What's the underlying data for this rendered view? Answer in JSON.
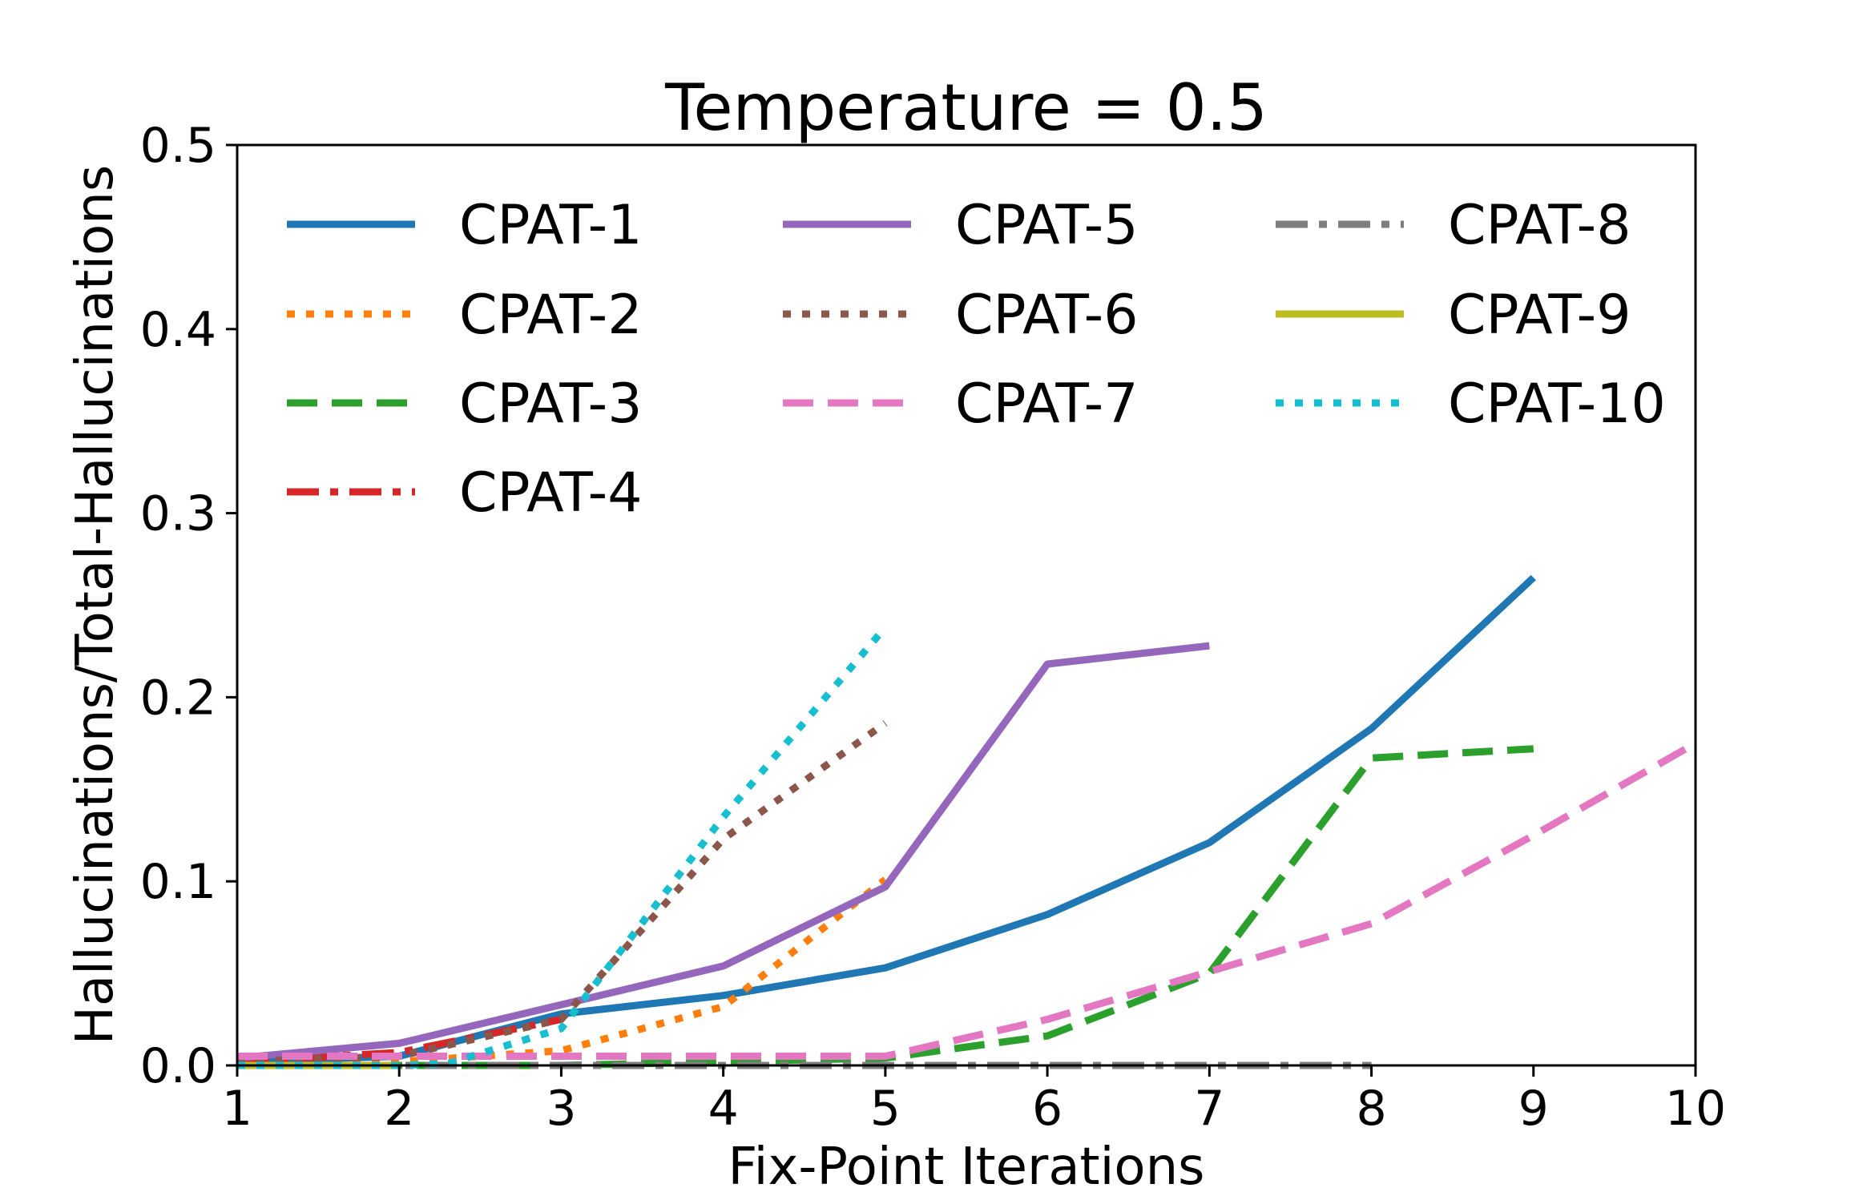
{
  "chart_data": {
    "type": "line",
    "title": "Temperature = 0.5",
    "xlabel": "Fix-Point Iterations",
    "ylabel": "Hallucinations/Total-Hallucinations",
    "xlim": [
      1,
      10
    ],
    "ylim": [
      0,
      0.5
    ],
    "x_ticks": [
      "1",
      "2",
      "3",
      "4",
      "5",
      "6",
      "7",
      "8",
      "9",
      "10"
    ],
    "y_ticks": [
      "0.0",
      "0.1",
      "0.2",
      "0.3",
      "0.4",
      "0.5"
    ],
    "grid": false,
    "legend_placement": "top-left, 3 columns",
    "series": [
      {
        "name": "CPAT-1",
        "color": "#1f77b4",
        "style": "solid",
        "x": [
          1,
          2,
          3,
          4,
          5,
          6,
          7,
          8,
          9
        ],
        "y": [
          0.002,
          0.005,
          0.028,
          0.038,
          0.053,
          0.082,
          0.121,
          0.183,
          0.265
        ]
      },
      {
        "name": "CPAT-2",
        "color": "#ff7f0e",
        "style": "dotted",
        "x": [
          1,
          2,
          3,
          4,
          5
        ],
        "y": [
          0.0,
          0.002,
          0.008,
          0.032,
          0.101
        ]
      },
      {
        "name": "CPAT-3",
        "color": "#2ca02c",
        "style": "dashed",
        "x": [
          1,
          2,
          3,
          4,
          5,
          6,
          7,
          8,
          9
        ],
        "y": [
          0.0,
          0.0,
          0.0,
          0.002,
          0.004,
          0.016,
          0.05,
          0.167,
          0.172
        ]
      },
      {
        "name": "CPAT-4",
        "color": "#d62728",
        "style": "dashdot",
        "x": [
          1,
          2,
          3
        ],
        "y": [
          0.002,
          0.007,
          0.025
        ]
      },
      {
        "name": "CPAT-5",
        "color": "#9467bd",
        "style": "solid",
        "x": [
          1,
          2,
          3,
          4,
          5,
          6,
          7
        ],
        "y": [
          0.004,
          0.012,
          0.033,
          0.054,
          0.097,
          0.218,
          0.228
        ]
      },
      {
        "name": "CPAT-6",
        "color": "#8c564b",
        "style": "dotted",
        "x": [
          1,
          2,
          3,
          4,
          5
        ],
        "y": [
          0.002,
          0.005,
          0.025,
          0.123,
          0.186
        ]
      },
      {
        "name": "CPAT-7",
        "color": "#e377c2",
        "style": "dashed",
        "x": [
          1,
          2,
          3,
          4,
          5,
          6,
          7,
          8,
          9,
          10
        ],
        "y": [
          0.005,
          0.005,
          0.005,
          0.005,
          0.005,
          0.025,
          0.051,
          0.077,
          0.125,
          0.175
        ]
      },
      {
        "name": "CPAT-8",
        "color": "#7f7f7f",
        "style": "dashdot",
        "x": [
          1,
          2,
          3,
          4,
          5,
          6,
          7,
          8
        ],
        "y": [
          0.0,
          0.0,
          0.0,
          0.0,
          0.0,
          0.0,
          0.0,
          0.0
        ]
      },
      {
        "name": "CPAT-9",
        "color": "#bcbd22",
        "style": "solid",
        "x": [
          1,
          2
        ],
        "y": [
          0.0,
          0.0
        ]
      },
      {
        "name": "CPAT-10",
        "color": "#17becf",
        "style": "dotted",
        "x": [
          1,
          2,
          2.3,
          3,
          4,
          5
        ],
        "y": [
          0.0,
          0.0,
          0.001,
          0.02,
          0.135,
          0.238
        ]
      }
    ]
  }
}
